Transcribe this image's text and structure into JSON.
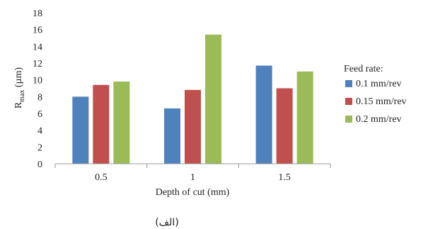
{
  "chart_data": {
    "type": "bar",
    "categories": [
      "0.5",
      "1",
      "1.5"
    ],
    "series": [
      {
        "name": "0.1 mm/rev",
        "values": [
          8.0,
          6.6,
          11.7
        ],
        "color": "#4f81bd"
      },
      {
        "name": "0.15 mm/rev",
        "values": [
          9.4,
          8.8,
          9.0
        ],
        "color": "#c0504d"
      },
      {
        "name": "0.2 mm/rev",
        "values": [
          9.8,
          15.4,
          11.0
        ],
        "color": "#9bbb59"
      }
    ],
    "xlabel": "Depth of cut (mm)",
    "ylabel_main": "R",
    "ylabel_sub": "max",
    "ylabel_unit": " (µm)",
    "yticks": [
      "0",
      "2",
      "4",
      "6",
      "8",
      "10",
      "12",
      "14",
      "16",
      "18"
    ],
    "ylim": [
      0,
      18
    ],
    "grid": "none",
    "legend": {
      "title": "Feed rate:",
      "position": "right"
    }
  },
  "caption": "(الف)"
}
